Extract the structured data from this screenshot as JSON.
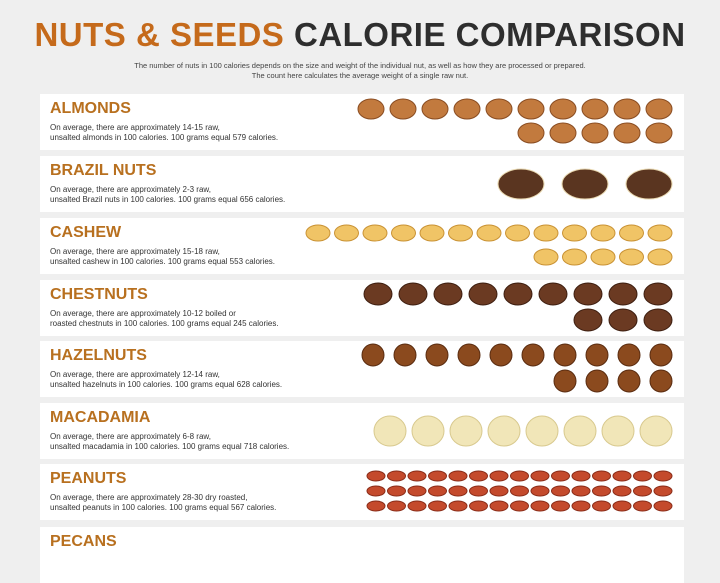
{
  "header": {
    "title_accent": "NUTS & SEEDS",
    "title_rest": "CALORIE COMPARISON",
    "subtitle": [
      "The number of nuts in 100 calories depends on the size and weight of the individual nut, as well as how they are processed or prepared.",
      "The count here calculates the average weight of a single raw nut."
    ]
  },
  "items": [
    {
      "name": "ALMONDS",
      "lines": [
        "On average, there are approximately 14-15 raw,",
        "unsalted almonds in 100 calories. 100 grams equal 579 calories."
      ]
    },
    {
      "name": "BRAZIL NUTS",
      "lines": [
        "On average, there are approximately 2-3 raw,",
        "unsalted Brazil nuts in 100 calories. 100 grams equal 656 calories."
      ]
    },
    {
      "name": "CASHEW",
      "lines": [
        "On average, there are approximately 15-18 raw,",
        "unsalted cashew in 100 calories. 100 grams equal 553 calories."
      ]
    },
    {
      "name": "CHESTNUTS",
      "lines": [
        "On average, there are approximately 10-12 boiled or",
        "roasted chestnuts in 100 calories. 100 grams equal 245 calories."
      ]
    },
    {
      "name": "HAZELNUTS",
      "lines": [
        "On average, there are approximately 12-14 raw,",
        "unsalted hazelnuts in 100 calories. 100 grams equal 628 calories."
      ]
    },
    {
      "name": "MACADAMIA",
      "lines": [
        "On average, there are approximately 6-8 raw,",
        "unsalted macadamia in 100 calories. 100 grams equal 718 calories."
      ]
    },
    {
      "name": "PEANUTS",
      "lines": [
        "On average, there are approximately 28-30 dry roasted,",
        "unsalted peanuts in 100 calories. 100 grams equal 567 calories."
      ]
    },
    {
      "name": "PECANS",
      "lines": []
    }
  ]
}
